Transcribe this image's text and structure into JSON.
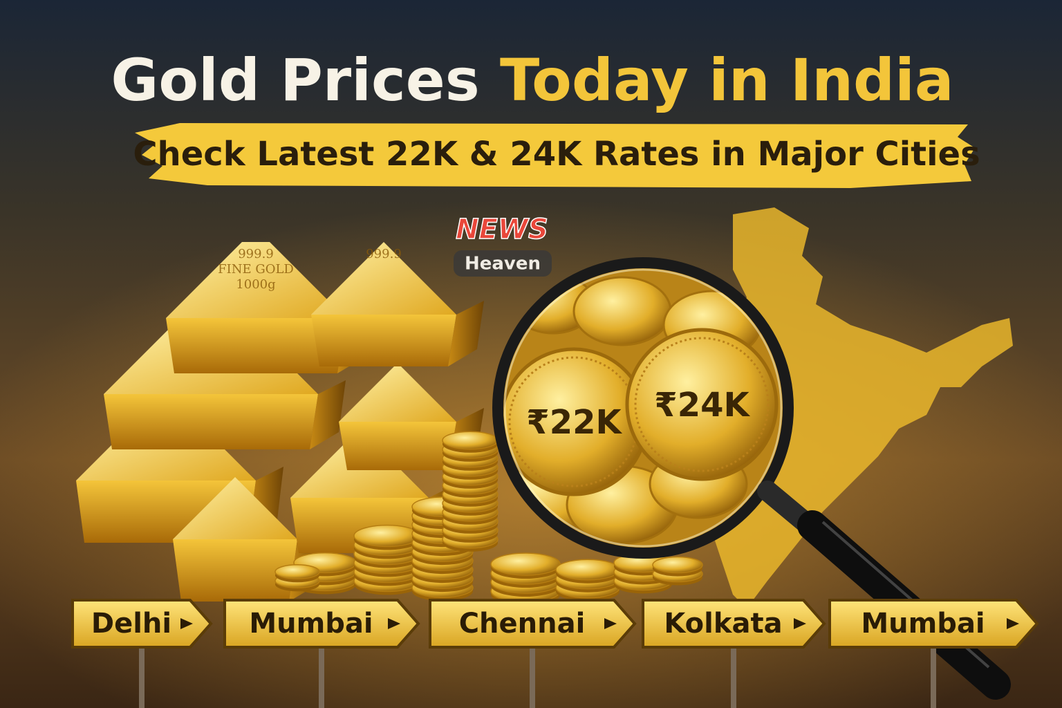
{
  "header": {
    "title_white": "Gold Prices",
    "title_gold": "Today in India",
    "subtitle": "Check Latest 22K & 24K Rates in Major Cities"
  },
  "logo": {
    "top": "NEWS",
    "bottom": "Heaven"
  },
  "bar_engravings": [
    "999.9",
    "FINE GOLD",
    "1000g"
  ],
  "coins": [
    "₹22K",
    "₹24K"
  ],
  "cities": [
    "Delhi",
    "Mumbai",
    "Chennai",
    "Kolkata",
    "Mumbai"
  ]
}
